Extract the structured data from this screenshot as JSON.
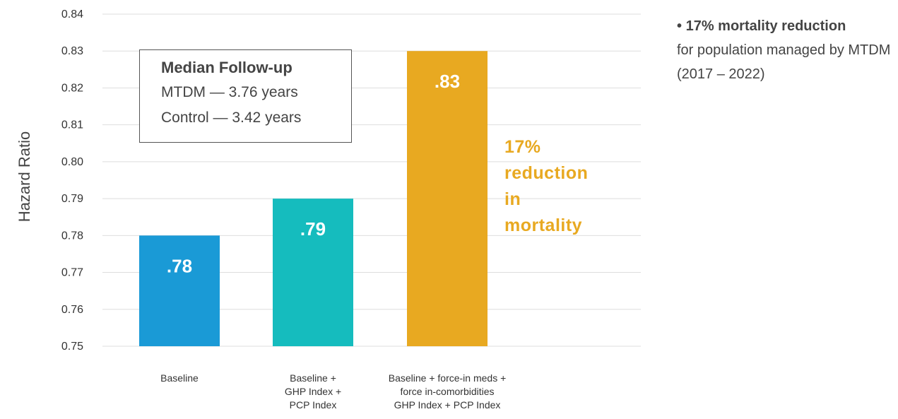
{
  "chart_data": {
    "type": "bar",
    "title": "",
    "xlabel": "",
    "ylabel": "Hazard Ratio",
    "ylim": [
      0.75,
      0.84
    ],
    "yticks": [
      "0.84",
      "0.83",
      "0.82",
      "0.81",
      "0.80",
      "0.79",
      "0.78",
      "0.77",
      "0.76",
      "0.75"
    ],
    "grid": true,
    "categories": [
      [
        "Baseline"
      ],
      [
        "Baseline +",
        "GHP Index +",
        "PCP Index"
      ],
      [
        "Baseline + force-in meds +",
        "force in-comorbidities",
        "GHP Index + PCP Index"
      ]
    ],
    "values": [
      0.78,
      0.79,
      0.83
    ],
    "data_labels": [
      ".78",
      ".79",
      ".83"
    ],
    "colors": [
      "#1a9ad6",
      "#15bcbe",
      "#e8a921"
    ],
    "callout": {
      "lines": [
        "17%",
        "reduction",
        "in",
        "mortality"
      ],
      "color": "#e8a921"
    }
  },
  "followup": {
    "title": "Median Follow-up",
    "line1": "MTDM — 3.76 years",
    "line2": "Control — 3.42 years"
  },
  "side_note": {
    "bullet": "•",
    "bold": "17% mortality reduction",
    "text": "for population managed by MTDM (2017 – 2022)"
  }
}
